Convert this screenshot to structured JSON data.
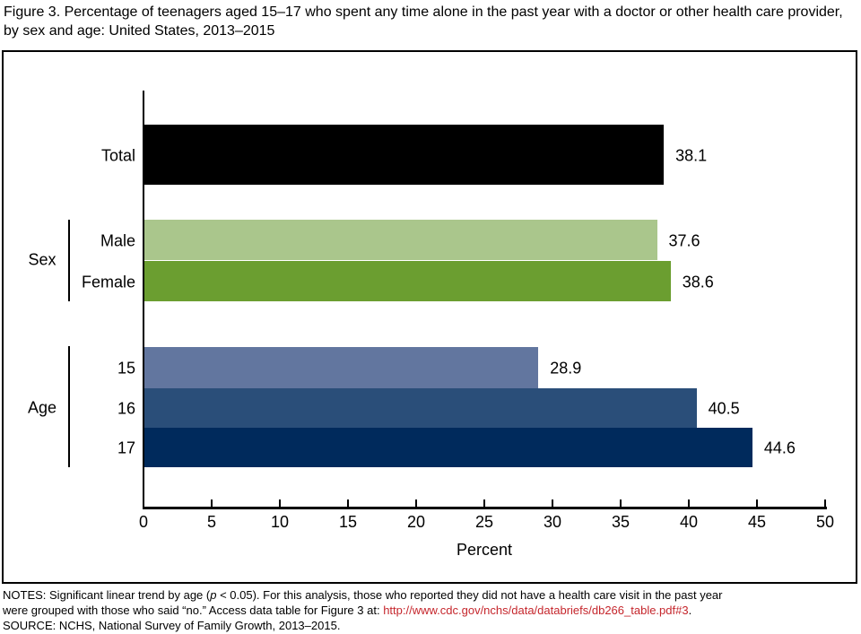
{
  "figure": {
    "title": "Figure 3. Percentage of teenagers aged 15–17 who spent any time alone in the past year with a doctor or other health care provider, by sex and age: United States, 2013–2015"
  },
  "chart_data": {
    "type": "bar",
    "orientation": "horizontal",
    "title": "Percentage of teenagers aged 15–17 who spent any time alone in the past year with a doctor or other health care provider, by sex and age: United States, 2013–2015",
    "xlabel": "Percent",
    "xlim": [
      0,
      50
    ],
    "xticks": [
      0,
      5,
      10,
      15,
      20,
      25,
      30,
      35,
      40,
      45,
      50
    ],
    "grid": false,
    "value_labels": true,
    "legend": "none",
    "groups": [
      {
        "label": "",
        "bars": [
          {
            "label": "Total",
            "value": 38.1,
            "color": "#000000"
          }
        ]
      },
      {
        "label": "Sex",
        "bars": [
          {
            "label": "Male",
            "value": 37.6,
            "color": "#aac68c"
          },
          {
            "label": "Female",
            "value": 38.6,
            "color": "#6b9e30"
          }
        ]
      },
      {
        "label": "Age",
        "bars": [
          {
            "label": "15",
            "value": 28.9,
            "color": "#62769f"
          },
          {
            "label": "16",
            "value": 40.5,
            "color": "#2a4e79"
          },
          {
            "label": "17",
            "value": 44.6,
            "color": "#002a5c"
          }
        ]
      }
    ]
  },
  "notes": {
    "line1_prefix": "NOTES: Significant linear trend by age (",
    "line1_italic": "p",
    "line1_suffix": " < 0.05). For this analysis, those who reported they did not have a health care visit in the past year",
    "line2_prefix": "were grouped with those who said “no.” Access data table for Figure 3 at: ",
    "link": "http://www.cdc.gov/nchs/data/databriefs/db266_table.pdf#3",
    "link_suffix": ".",
    "source": "SOURCE: NCHS, National Survey of Family Growth, 2013–2015.",
    "link_color": "#c5262c"
  }
}
